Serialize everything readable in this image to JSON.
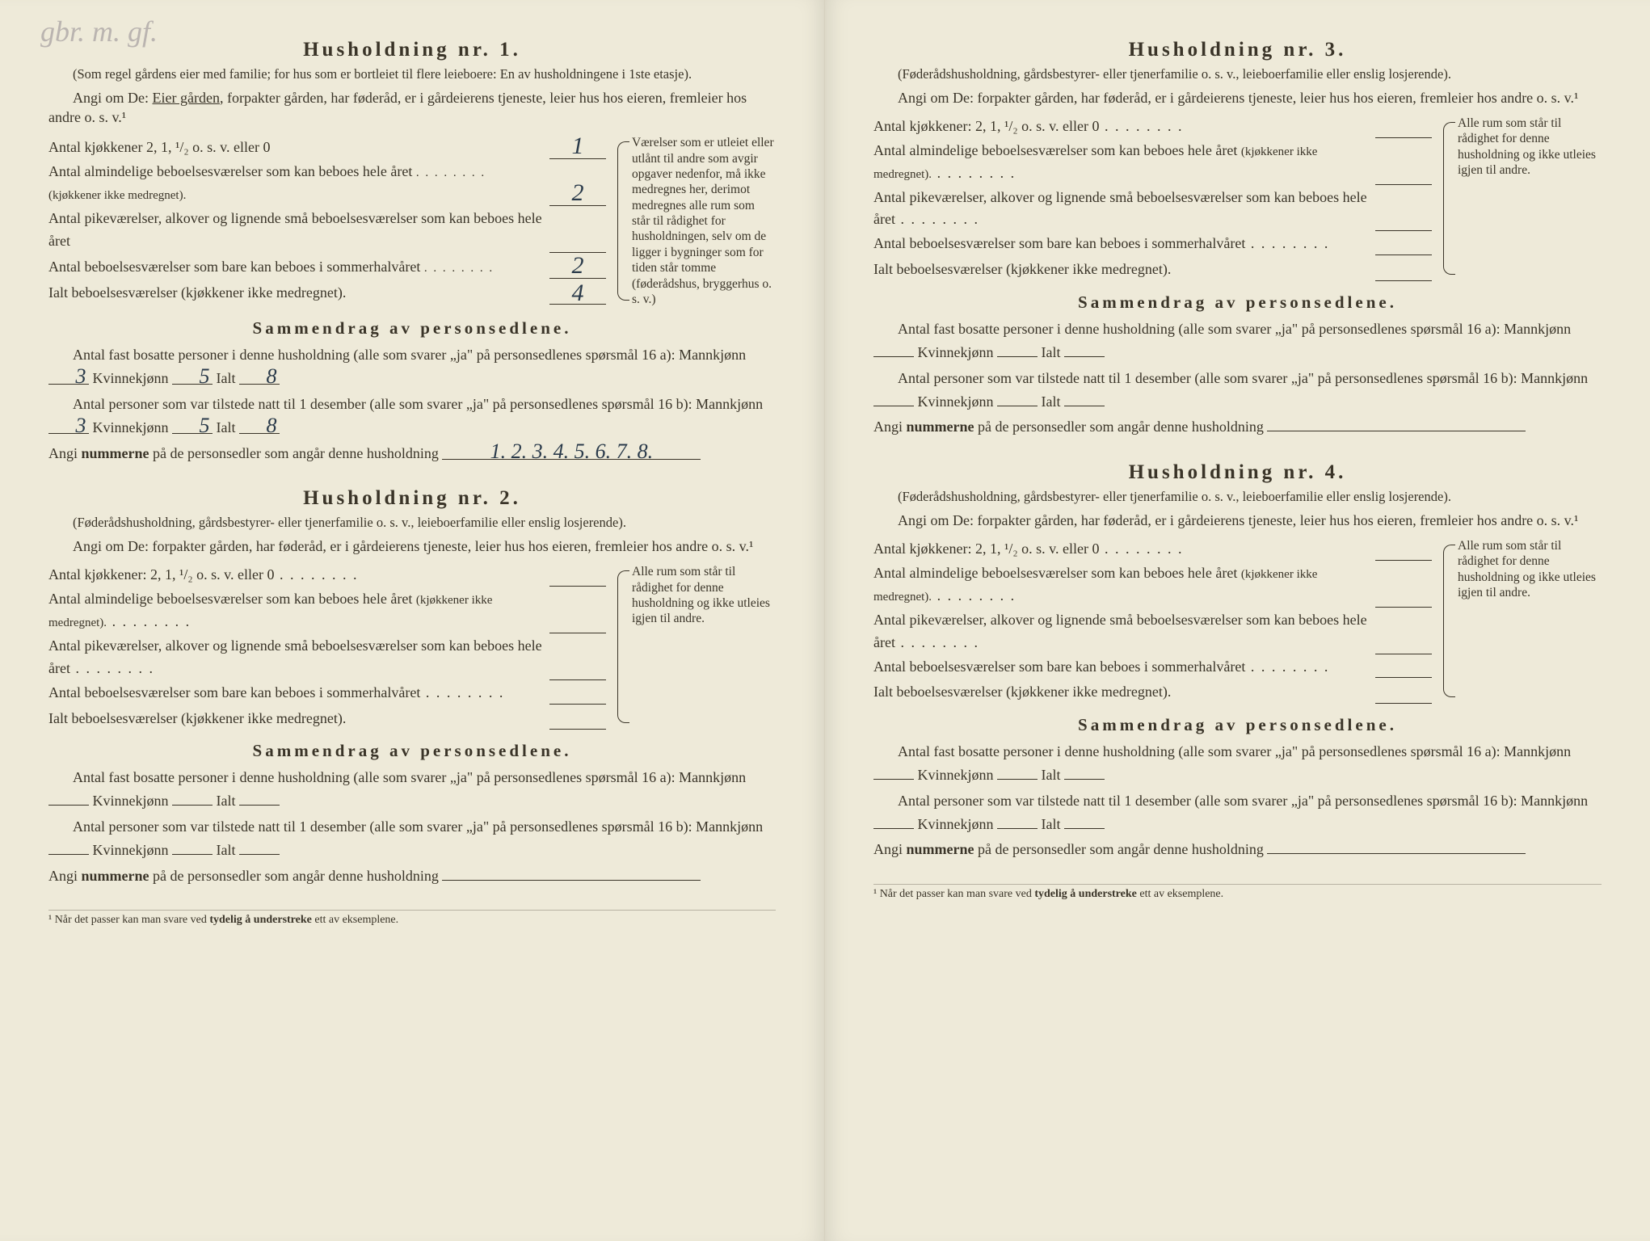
{
  "handwritten_top": "gbr. m. gf.",
  "households": [
    {
      "title": "Husholdning nr. 1.",
      "subnote": "(Som regel gårdens eier med familie; for hus som er bortleiet til flere leieboere: En av husholdningene i 1ste etasje).",
      "angi_prefix": "Angi om De:",
      "angi_underlined": "Eier gården",
      "angi_rest": ", forpakter gården, har føderåd, er i gårdeierens tjeneste, leier hus hos eieren, fremleier hos andre o. s. v.¹",
      "rows": {
        "kjokken_label": "Antal kjøkkener 2, 1, ¹/₂ o. s. v. eller 0",
        "kjokken_val": "1",
        "alm_label": "Antal almindelige beboelsesværelser som kan beboes hele året",
        "alm_small": "(kjøkkener ikke medregnet).",
        "alm_val": "2",
        "pike_label": "Antal pikeværelser, alkover og lignende små beboelsesværelser som kan beboes hele året",
        "pike_val": "",
        "sommer_label": "Antal beboelsesværelser som bare kan beboes i sommerhalvåret",
        "sommer_val": "2",
        "total_label": "Ialt beboelsesværelser",
        "total_small": "(kjøkkener ikke medregnet).",
        "total_val": "4"
      },
      "sidebar": "Værelser som er utleiet eller utlånt til andre som avgir opgaver nedenfor, må ikke medregnes her, derimot medregnes alle rum som står til rådighet for husholdningen, selv om de ligger i bygninger som for tiden står tomme (føderådshus, bryggerhus o. s. v.)",
      "summary_title": "Sammendrag av personsedlene.",
      "s_line1_a": "Antal fast bosatte personer i denne husholdning (alle som svarer „ja\" på personsedlenes spørsmål 16 a): Mannkjønn",
      "s_mann_a": "3",
      "s_kvinne_label": "Kvinnekjønn",
      "s_kvinne_a": "5",
      "s_ialt_label": "Ialt",
      "s_ialt_a": "8",
      "s_line2_a": "Antal personer som var tilstede natt til 1 desember (alle som svarer „ja\" på personsedlenes spørsmål 16 b): Mannkjønn",
      "s_mann_b": "3",
      "s_kvinne_b": "5",
      "s_ialt_b": "8",
      "s_numrene": "Angi",
      "s_numrene_bold": "nummerne",
      "s_numrene_rest": "på de personsedler som angår denne husholdning",
      "s_numrene_val": "1. 2. 3. 4. 5. 6. 7. 8."
    },
    {
      "title": "Husholdning nr. 2.",
      "subnote": "(Føderådshusholdning, gårdsbestyrer- eller tjenerfamilie o. s. v., leieboerfamilie eller enslig losjerende).",
      "angi_prefix": "Angi om De:",
      "angi_rest": "forpakter gården, har føderåd, er i gårdeierens tjeneste, leier hus hos eieren, fremleier hos andre o. s. v.¹",
      "rows": {
        "kjokken_label": "Antal kjøkkener: 2, 1, ¹/₂ o. s. v. eller 0",
        "alm_label": "Antal almindelige beboelsesværelser som kan beboes hele året",
        "alm_small": "(kjøkkener ikke medregnet).",
        "pike_label": "Antal pikeværelser, alkover og lignende små beboelsesværelser som kan beboes hele året",
        "sommer_label": "Antal beboelsesværelser som bare kan beboes i sommerhalvåret",
        "total_label": "Ialt beboelsesværelser",
        "total_small": "(kjøkkener ikke medregnet)."
      },
      "sidebar": "Alle rum som står til rådighet for denne husholdning og ikke utleies igjen til andre.",
      "summary_title": "Sammendrag av personsedlene.",
      "s_line1_a": "Antal fast bosatte personer i denne husholdning (alle som svarer „ja\" på personsedlenes spørsmål 16 a): Mannkjønn",
      "s_kvinne_label": "Kvinnekjønn",
      "s_ialt_label": "Ialt",
      "s_line2_a": "Antal personer som var tilstede natt til 1 desember (alle som svarer „ja\" på personsedlenes spørsmål 16 b): Mannkjønn",
      "s_numrene": "Angi",
      "s_numrene_bold": "nummerne",
      "s_numrene_rest": "på de personsedler som angår denne husholdning"
    },
    {
      "title": "Husholdning nr. 3.",
      "subnote": "(Føderådshusholdning, gårdsbestyrer- eller tjenerfamilie o. s. v., leieboerfamilie eller enslig losjerende).",
      "angi_prefix": "Angi om De:",
      "angi_rest": "forpakter gården, har føderåd, er i gårdeierens tjeneste, leier hus hos eieren, fremleier hos andre o. s. v.¹",
      "rows": {
        "kjokken_label": "Antal kjøkkener: 2, 1, ¹/₂ o. s. v. eller 0",
        "alm_label": "Antal almindelige beboelsesværelser som kan beboes hele året",
        "alm_small": "(kjøkkener ikke medregnet).",
        "pike_label": "Antal pikeværelser, alkover og lignende små beboelsesværelser som kan beboes hele året",
        "sommer_label": "Antal beboelsesværelser som bare kan beboes i sommerhalvåret",
        "total_label": "Ialt beboelsesværelser",
        "total_small": "(kjøkkener ikke medregnet)."
      },
      "sidebar": "Alle rum som står til rådighet for denne husholdning og ikke utleies igjen til andre.",
      "summary_title": "Sammendrag av personsedlene.",
      "s_line1_a": "Antal fast bosatte personer i denne husholdning (alle som svarer „ja\" på personsedlenes spørsmål 16 a): Mannkjønn",
      "s_kvinne_label": "Kvinnekjønn",
      "s_ialt_label": "Ialt",
      "s_line2_a": "Antal personer som var tilstede natt til 1 desember (alle som svarer „ja\" på personsedlenes spørsmål 16 b): Mannkjønn",
      "s_numrene": "Angi",
      "s_numrene_bold": "nummerne",
      "s_numrene_rest": "på de personsedler som angår denne husholdning"
    },
    {
      "title": "Husholdning nr. 4.",
      "subnote": "(Føderådshusholdning, gårdsbestyrer- eller tjenerfamilie o. s. v., leieboerfamilie eller enslig losjerende).",
      "angi_prefix": "Angi om De:",
      "angi_rest": "forpakter gården, har føderåd, er i gårdeierens tjeneste, leier hus hos eieren, fremleier hos andre o. s. v.¹",
      "rows": {
        "kjokken_label": "Antal kjøkkener: 2, 1, ¹/₂ o. s. v. eller 0",
        "alm_label": "Antal almindelige beboelsesværelser som kan beboes hele året",
        "alm_small": "(kjøkkener ikke medregnet).",
        "pike_label": "Antal pikeværelser, alkover og lignende små beboelsesværelser som kan beboes hele året",
        "sommer_label": "Antal beboelsesværelser som bare kan beboes i sommerhalvåret",
        "total_label": "Ialt beboelsesværelser",
        "total_small": "(kjøkkener ikke medregnet)."
      },
      "sidebar": "Alle rum som står til rådighet for denne husholdning og ikke utleies igjen til andre.",
      "summary_title": "Sammendrag av personsedlene.",
      "s_line1_a": "Antal fast bosatte personer i denne husholdning (alle som svarer „ja\" på personsedlenes spørsmål 16 a): Mannkjønn",
      "s_kvinne_label": "Kvinnekjønn",
      "s_ialt_label": "Ialt",
      "s_line2_a": "Antal personer som var tilstede natt til 1 desember (alle som svarer „ja\" på personsedlenes spørsmål 16 b): Mannkjønn",
      "s_numrene": "Angi",
      "s_numrene_bold": "nummerne",
      "s_numrene_rest": "på de personsedler som angår denne husholdning"
    }
  ],
  "footnote": "¹ Når det passer kan man svare ved tydelig å understreke ett av eksemplene.",
  "footnote_bold": "tydelig å understreke"
}
